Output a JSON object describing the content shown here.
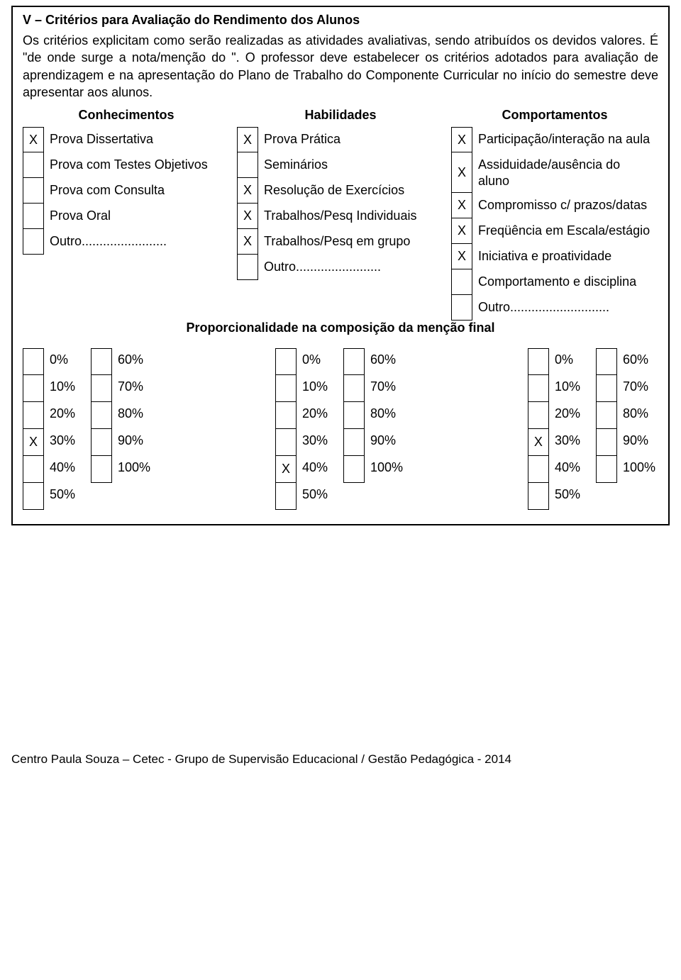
{
  "section_title": "V – Critérios para Avaliação do Rendimento dos Alunos",
  "intro": "Os critérios explicitam como serão realizadas as atividades avaliativas, sendo atribuídos os devidos valores. É \"de onde surge a nota/menção do \". O professor deve estabelecer os critérios adotados para avaliação de aprendizagem e na apresentação do Plano de Trabalho do Componente Curricular no início do semestre deve apresentar aos alunos.",
  "headers": {
    "conhecimentos": "Conhecimentos",
    "habilidades": "Habilidades",
    "comportamentos": "Comportamentos"
  },
  "conhecimentos": [
    {
      "mark": "X",
      "label": "Prova Dissertativa"
    },
    {
      "mark": "",
      "label": "Prova com Testes Objetivos"
    },
    {
      "mark": "",
      "label": "Prova com Consulta"
    },
    {
      "mark": "",
      "label": "Prova Oral"
    },
    {
      "mark": "",
      "label": "Outro........................"
    }
  ],
  "habilidades": [
    {
      "mark": "X",
      "label": "Prova Prática"
    },
    {
      "mark": "",
      "label": "Seminários"
    },
    {
      "mark": "X",
      "label": "Resolução de Exercícios"
    },
    {
      "mark": "X",
      "label": "Trabalhos/Pesq Individuais"
    },
    {
      "mark": "X",
      "label": "Trabalhos/Pesq em grupo"
    },
    {
      "mark": "",
      "label": "Outro........................"
    }
  ],
  "comportamentos": [
    {
      "mark": "X",
      "label": "Participação/interação na aula"
    },
    {
      "mark": "X",
      "label": "Assiduidade/ausência do aluno"
    },
    {
      "mark": "X",
      "label": "Compromisso c/ prazos/datas"
    },
    {
      "mark": "X",
      "label": "Freqüência em Escala/estágio"
    },
    {
      "mark": "X",
      "label": "Iniciativa e proatividade"
    },
    {
      "mark": "",
      "label": "Comportamento e disciplina"
    },
    {
      "mark": "",
      "label": "Outro............................"
    }
  ],
  "prop_title": "Proporcionalidade na composição da menção final",
  "pct_labels": {
    "p0": "0%",
    "p10": "10%",
    "p20": "20%",
    "p30": "30%",
    "p40": "40%",
    "p50": "50%",
    "p60": "60%",
    "p70": "70%",
    "p80": "80%",
    "p90": "90%",
    "p100": "100%"
  },
  "pct_section1": {
    "left": [
      {
        "mark": ""
      },
      {
        "mark": ""
      },
      {
        "mark": ""
      },
      {
        "mark": "X"
      },
      {
        "mark": ""
      },
      {
        "mark": ""
      }
    ],
    "right": [
      {
        "mark": ""
      },
      {
        "mark": ""
      },
      {
        "mark": ""
      },
      {
        "mark": ""
      },
      {
        "mark": ""
      }
    ]
  },
  "pct_section2": {
    "left": [
      {
        "mark": ""
      },
      {
        "mark": ""
      },
      {
        "mark": ""
      },
      {
        "mark": ""
      },
      {
        "mark": "X"
      },
      {
        "mark": ""
      }
    ],
    "right": [
      {
        "mark": ""
      },
      {
        "mark": ""
      },
      {
        "mark": ""
      },
      {
        "mark": ""
      },
      {
        "mark": ""
      }
    ]
  },
  "pct_section3": {
    "left": [
      {
        "mark": ""
      },
      {
        "mark": ""
      },
      {
        "mark": ""
      },
      {
        "mark": "X"
      },
      {
        "mark": ""
      },
      {
        "mark": ""
      }
    ],
    "right": [
      {
        "mark": ""
      },
      {
        "mark": ""
      },
      {
        "mark": ""
      },
      {
        "mark": ""
      },
      {
        "mark": ""
      }
    ]
  },
  "footer": "Centro Paula Souza – Cetec - Grupo de Supervisão Educacional / Gestão Pedagógica - 2014"
}
